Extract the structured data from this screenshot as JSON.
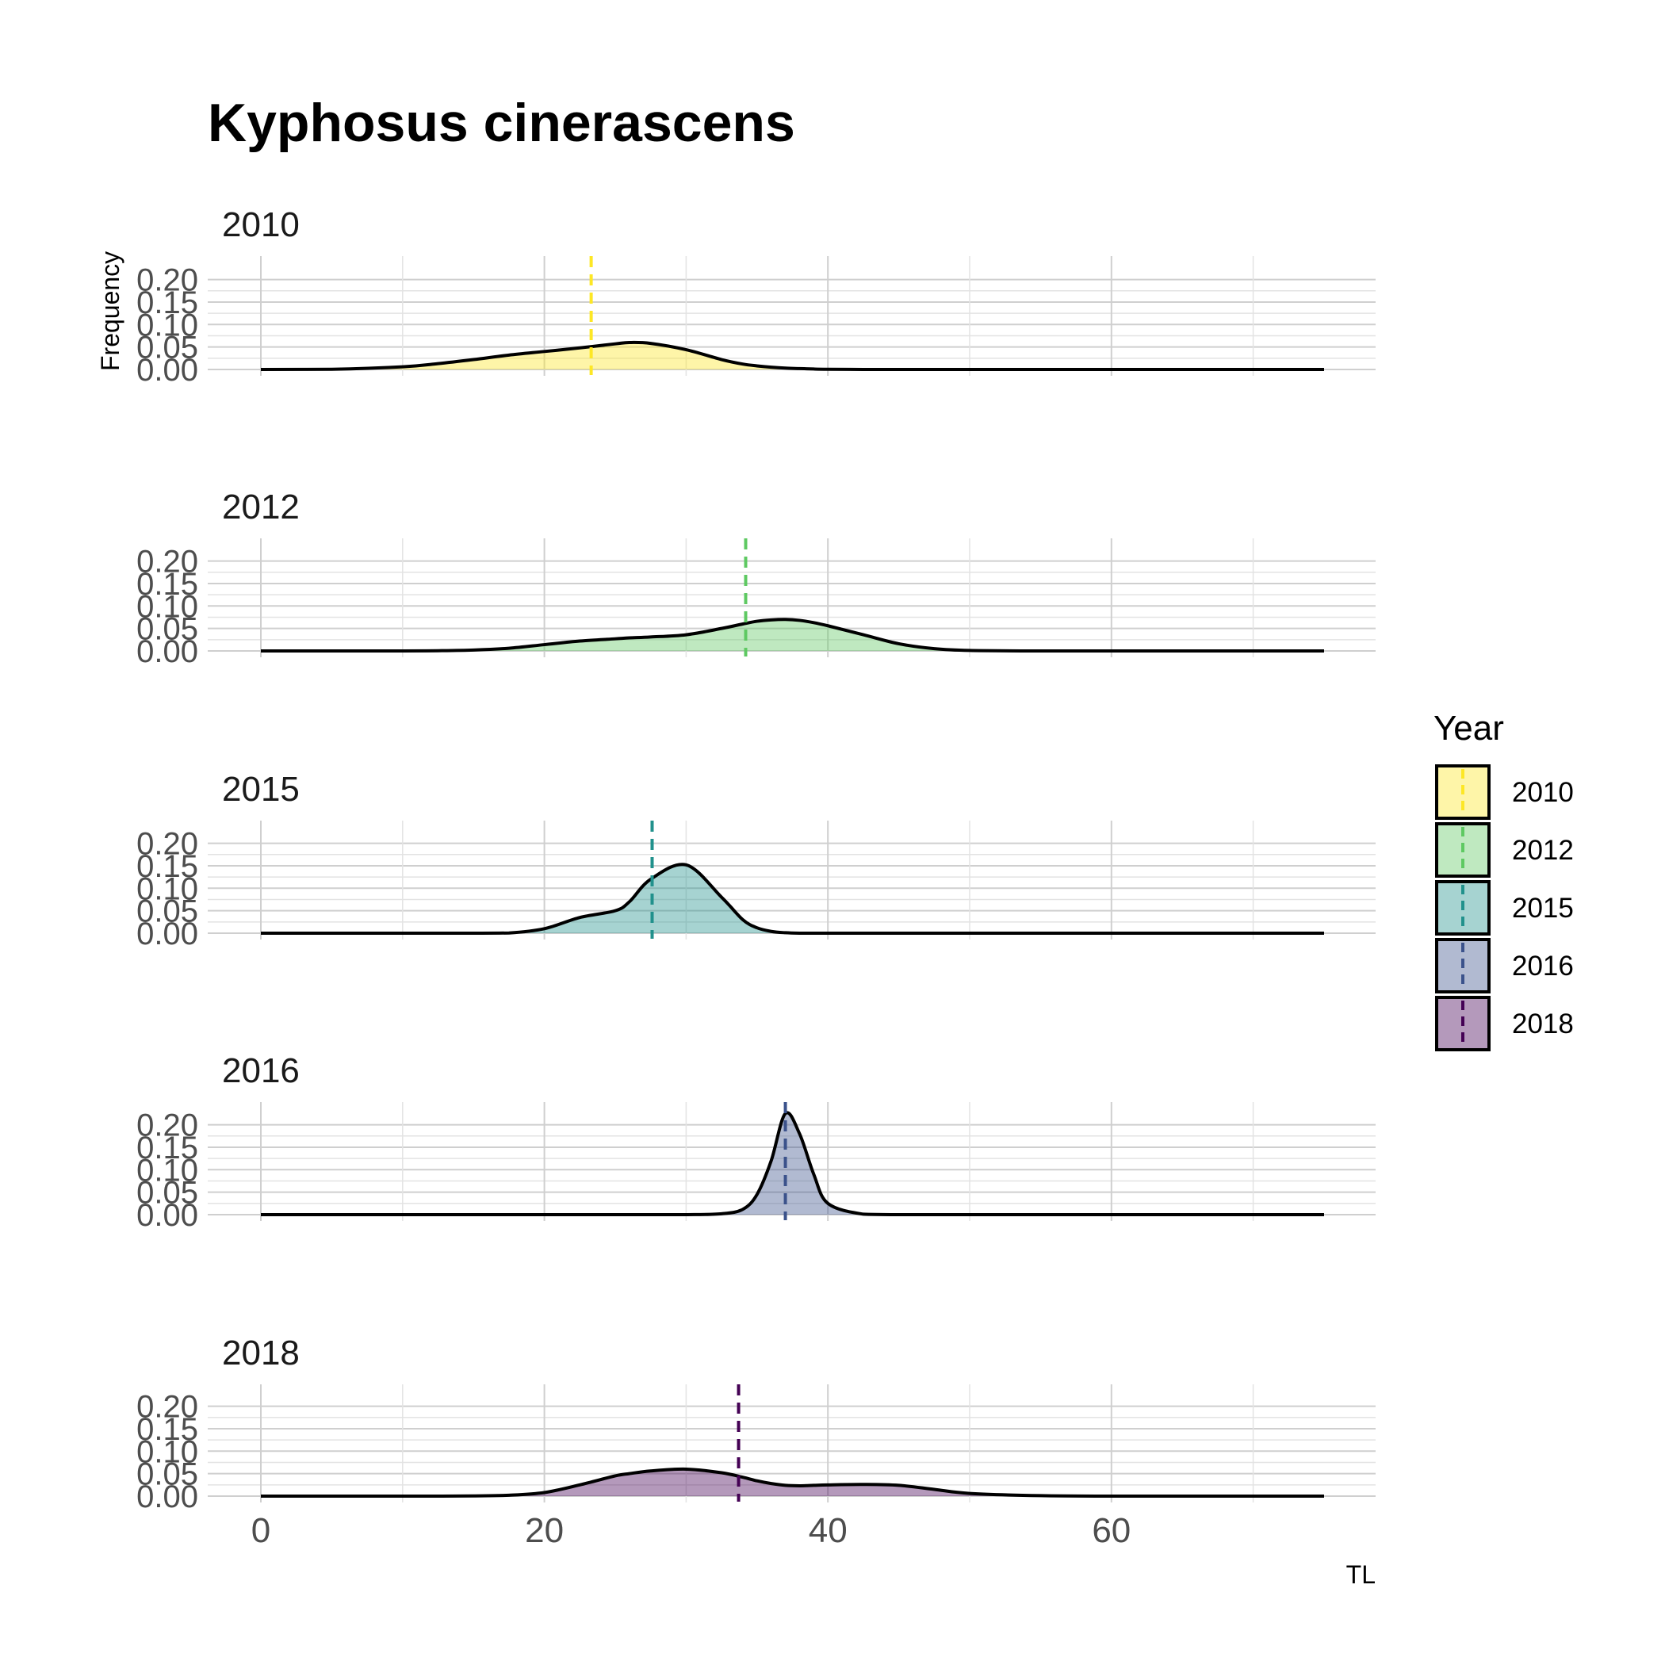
{
  "chart_data": {
    "type": "area",
    "subtype": "faceted-density",
    "title": "Kyphosus cinerascens",
    "xlabel": "TL",
    "ylabel": "Frequency",
    "xlim": [
      0,
      75
    ],
    "ylim": [
      0,
      0.22
    ],
    "x_ticks": [
      "0",
      "20",
      "40",
      "60"
    ],
    "x_tick_values": [
      0,
      20,
      40,
      60
    ],
    "y_ticks": [
      "0.00",
      "0.05",
      "0.10",
      "0.15",
      "0.20"
    ],
    "y_tick_values": [
      0,
      0.05,
      0.1,
      0.15,
      0.2
    ],
    "grid": true,
    "legend": {
      "title": "Year",
      "placement": "right"
    },
    "x": [
      0,
      5,
      10,
      12.5,
      15,
      17.5,
      20,
      22.5,
      25,
      26,
      27.5,
      30,
      32.5,
      34,
      35,
      36,
      37,
      38,
      39,
      40,
      42.5,
      45,
      47.5,
      50,
      55,
      60,
      65,
      70,
      75
    ],
    "series": [
      {
        "name": "2010",
        "color": "#FDE725",
        "mean": 23.3,
        "values": [
          0,
          0.0005,
          0.006,
          0.013,
          0.022,
          0.032,
          0.04,
          0.048,
          0.057,
          0.06,
          0.058,
          0.044,
          0.022,
          0.012,
          0.008,
          0.005,
          0.003,
          0.002,
          0.001,
          0.0005,
          0,
          0,
          0,
          0,
          0,
          0,
          0,
          0,
          0
        ]
      },
      {
        "name": "2012",
        "color": "#5EC962",
        "mean": 34.2,
        "values": [
          0,
          0,
          0,
          0.0005,
          0.002,
          0.006,
          0.014,
          0.022,
          0.027,
          0.029,
          0.031,
          0.036,
          0.05,
          0.06,
          0.066,
          0.069,
          0.07,
          0.068,
          0.063,
          0.056,
          0.036,
          0.016,
          0.005,
          0.001,
          0,
          0,
          0,
          0,
          0
        ]
      },
      {
        "name": "2015",
        "color": "#21918C",
        "mean": 27.6,
        "values": [
          0,
          0,
          0,
          0,
          0,
          0.0005,
          0.01,
          0.035,
          0.05,
          0.07,
          0.12,
          0.152,
          0.08,
          0.03,
          0.012,
          0.004,
          0.001,
          0,
          0,
          0,
          0,
          0,
          0,
          0,
          0,
          0,
          0,
          0,
          0
        ]
      },
      {
        "name": "2016",
        "color": "#3B528B",
        "mean": 37.0,
        "values": [
          0,
          0,
          0,
          0,
          0,
          0,
          0,
          0,
          0,
          0,
          0,
          0,
          0.002,
          0.012,
          0.045,
          0.12,
          0.225,
          0.18,
          0.09,
          0.025,
          0.001,
          0,
          0,
          0,
          0,
          0,
          0,
          0,
          0
        ]
      },
      {
        "name": "2018",
        "color": "#440154",
        "mean": 33.7,
        "values": [
          0,
          0,
          0,
          0,
          0.0005,
          0.002,
          0.008,
          0.025,
          0.045,
          0.05,
          0.056,
          0.06,
          0.052,
          0.042,
          0.034,
          0.028,
          0.024,
          0.023,
          0.024,
          0.025,
          0.026,
          0.024,
          0.015,
          0.006,
          0.001,
          0,
          0,
          0,
          0
        ]
      }
    ]
  }
}
